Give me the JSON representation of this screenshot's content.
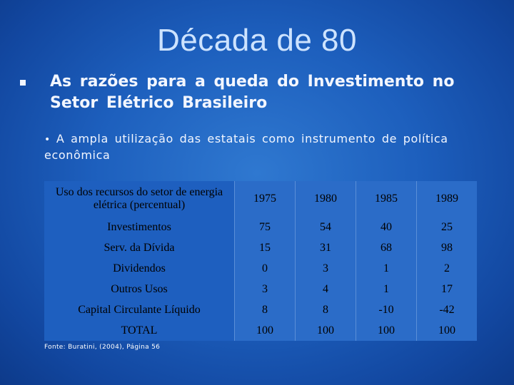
{
  "slide": {
    "title": "Década de 80",
    "bullet_main": "As razões para a queda do Investimento no Setor Elétrico Brasileiro",
    "bullet_sub": "A ampla utilização das estatais como instrumento de política econômica",
    "source": "Fonte: Buratini, (2004), Página 56"
  },
  "table": {
    "header_label": "Uso dos recursos do setor de energia elétrica (percentual)",
    "years": [
      "1975",
      "1980",
      "1985",
      "1989"
    ],
    "rows": [
      {
        "label": "Investimentos",
        "values": [
          "75",
          "54",
          "40",
          "25"
        ]
      },
      {
        "label": "Serv. da Dívida",
        "values": [
          "15",
          "31",
          "68",
          "98"
        ]
      },
      {
        "label": "Dividendos",
        "values": [
          "0",
          "3",
          "1",
          "2"
        ]
      },
      {
        "label": "Outros Usos",
        "values": [
          "3",
          "4",
          "1",
          "17"
        ]
      },
      {
        "label": "Capital Circulante Líquido",
        "values": [
          "8",
          "8",
          "-10",
          "-42"
        ]
      },
      {
        "label": "TOTAL",
        "values": [
          "100",
          "100",
          "100",
          "100"
        ]
      }
    ]
  },
  "colors": {
    "background": "#1d5fbd",
    "title": "#cde3ff",
    "body_text": "#f2f6ff",
    "table_text": "#000000"
  }
}
